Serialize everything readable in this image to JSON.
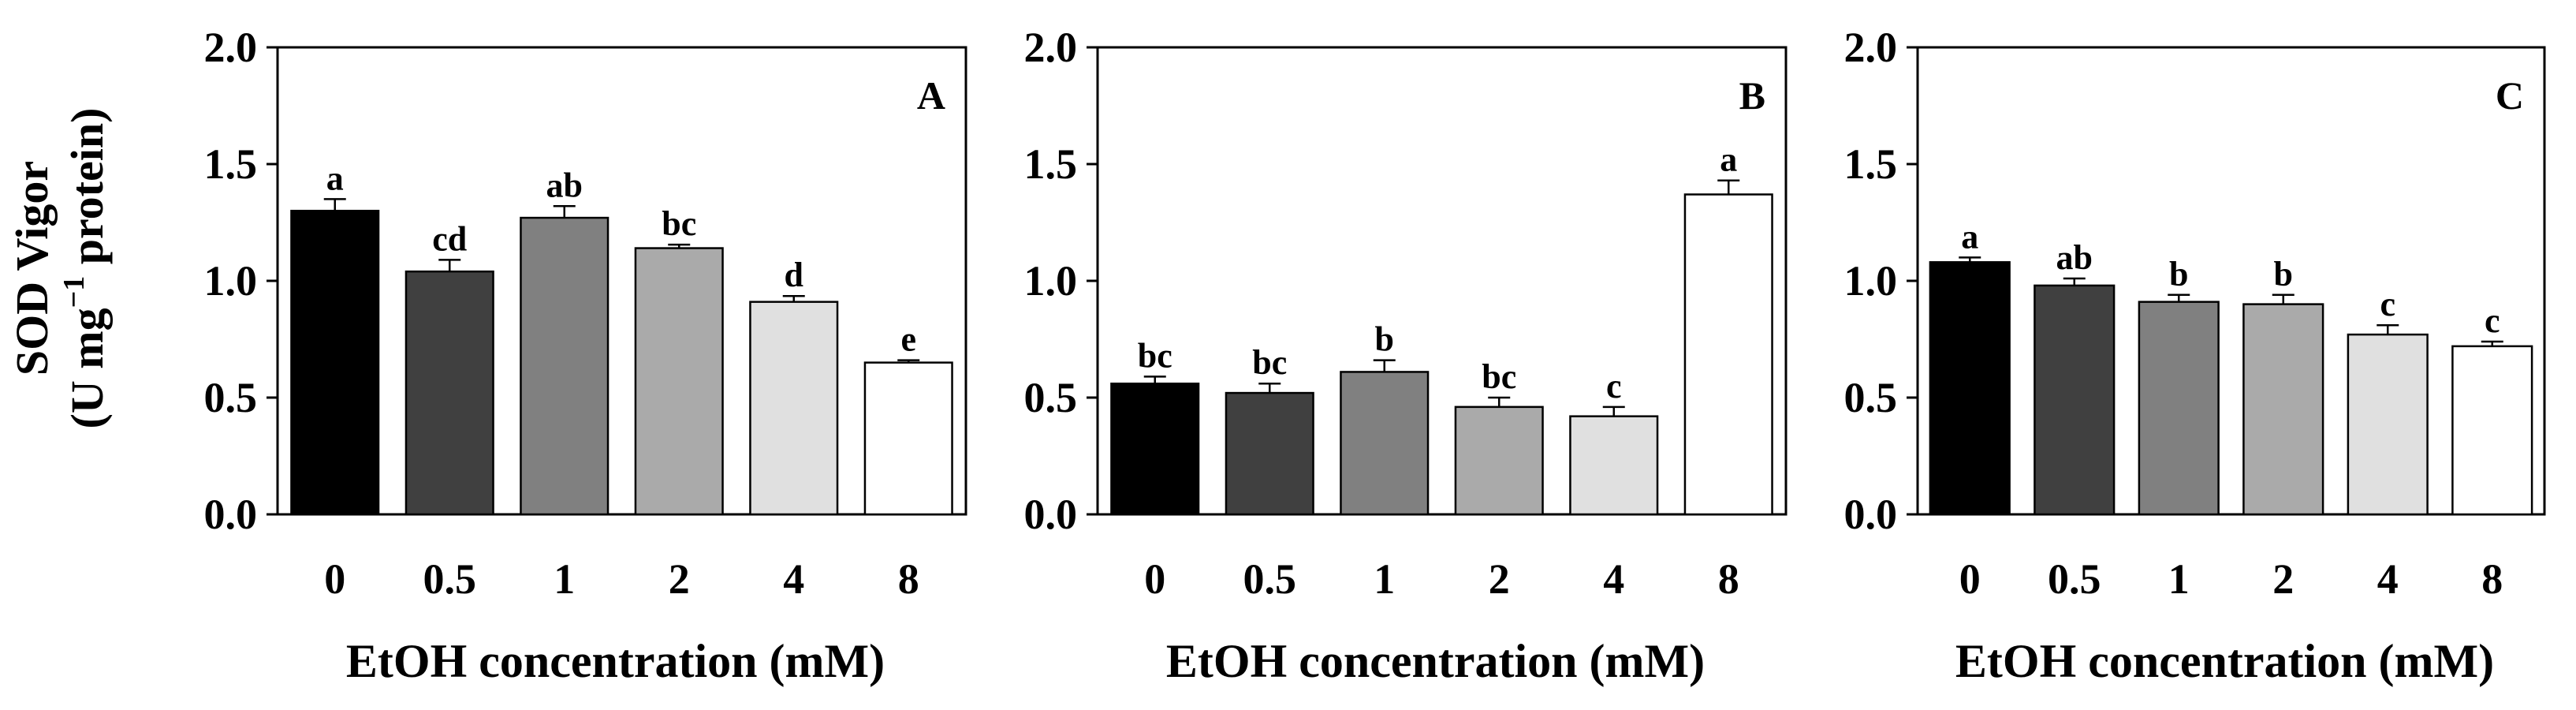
{
  "y_axis": {
    "title_line1": "SOD Vigor",
    "title_line2_prefix": "(U mg",
    "title_line2_superscript": "−1",
    "title_line2_suffix": " protein)"
  },
  "chart_data": [
    {
      "type": "bar",
      "panel_label": "A",
      "categories": [
        "0",
        "0.5",
        "1",
        "2",
        "4",
        "8"
      ],
      "values": [
        1.3,
        1.04,
        1.27,
        1.14,
        0.91,
        0.65
      ],
      "errors": [
        0.05,
        0.05,
        0.05,
        0.015,
        0.025,
        0.01
      ],
      "letters": [
        "a",
        "cd",
        "ab",
        "bc",
        "d",
        "e"
      ],
      "bar_colors": [
        "#000000",
        "#404040",
        "#808080",
        "#aaaaaa",
        "#e0e0e0",
        "#ffffff"
      ],
      "xlabel": "EtOH concentration (mM)",
      "ylim": [
        0.0,
        2.0
      ],
      "yticks": [
        "0.0",
        "0.5",
        "1.0",
        "1.5",
        "2.0"
      ],
      "ytick_values": [
        0.0,
        0.5,
        1.0,
        1.5,
        2.0
      ],
      "grid": false
    },
    {
      "type": "bar",
      "panel_label": "B",
      "categories": [
        "0",
        "0.5",
        "1",
        "2",
        "4",
        "8"
      ],
      "values": [
        0.56,
        0.52,
        0.61,
        0.46,
        0.42,
        1.37
      ],
      "errors": [
        0.03,
        0.04,
        0.05,
        0.04,
        0.04,
        0.06
      ],
      "letters": [
        "bc",
        "bc",
        "b",
        "bc",
        "c",
        "a"
      ],
      "bar_colors": [
        "#000000",
        "#404040",
        "#808080",
        "#aaaaaa",
        "#e0e0e0",
        "#ffffff"
      ],
      "xlabel": "EtOH concentration (mM)",
      "ylim": [
        0.0,
        2.0
      ],
      "yticks": [
        "0.0",
        "0.5",
        "1.0",
        "1.5",
        "2.0"
      ],
      "ytick_values": [
        0.0,
        0.5,
        1.0,
        1.5,
        2.0
      ],
      "grid": false
    },
    {
      "type": "bar",
      "panel_label": "C",
      "categories": [
        "0",
        "0.5",
        "1",
        "2",
        "4",
        "8"
      ],
      "values": [
        1.08,
        0.98,
        0.91,
        0.9,
        0.77,
        0.72
      ],
      "errors": [
        0.02,
        0.03,
        0.03,
        0.04,
        0.04,
        0.02
      ],
      "letters": [
        "a",
        "ab",
        "b",
        "b",
        "c",
        "c"
      ],
      "bar_colors": [
        "#000000",
        "#404040",
        "#808080",
        "#aaaaaa",
        "#e0e0e0",
        "#ffffff"
      ],
      "xlabel": "EtOH concentration (mM)",
      "ylim": [
        0.0,
        2.0
      ],
      "yticks": [
        "0.0",
        "0.5",
        "1.0",
        "1.5",
        "2.0"
      ],
      "ytick_values": [
        0.0,
        0.5,
        1.0,
        1.5,
        2.0
      ],
      "grid": false
    }
  ]
}
